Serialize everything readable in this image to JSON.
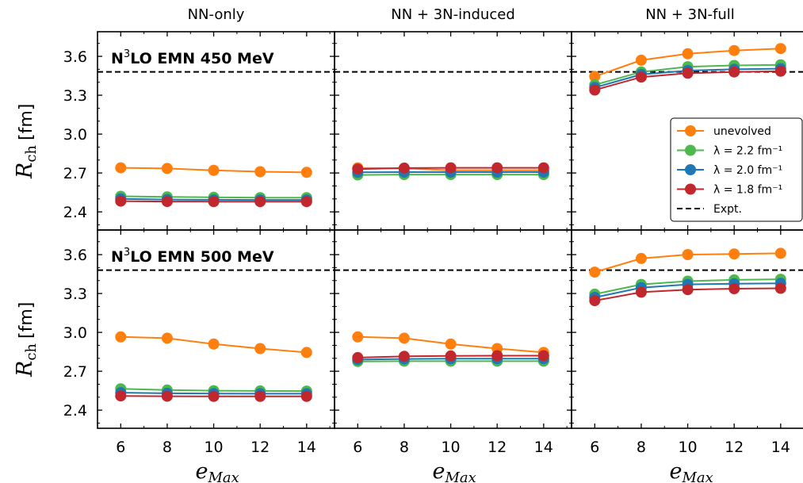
{
  "chart_data": {
    "type": "line",
    "column_titles": [
      "NN-only",
      "NN + 3N-induced",
      "NN + 3N-full"
    ],
    "row_labels": [
      "N³LO EMN 450 MeV",
      "N³LO EMN 500 MeV"
    ],
    "row_label_parts": [
      {
        "pre": "N",
        "sup": "3",
        "post": "LO EMN 450 MeV"
      },
      {
        "pre": "N",
        "sup": "3",
        "post": "LO EMN 500 MeV"
      }
    ],
    "xlabel": {
      "main": "e",
      "sub": "Max"
    },
    "ylabel": {
      "main": "R",
      "sub": "ch",
      "unit": "[fm]"
    },
    "x": [
      6,
      8,
      10,
      12,
      14
    ],
    "xticks": [
      "6",
      "8",
      "10",
      "12",
      "14"
    ],
    "yticks": [
      "2.4",
      "2.7",
      "3.0",
      "3.3",
      "3.6"
    ],
    "ytick_values": [
      2.4,
      2.7,
      3.0,
      3.3,
      3.6
    ],
    "xlim": [
      5,
      15.2
    ],
    "ylim": [
      2.26,
      3.79
    ],
    "expt_value": 3.48,
    "series_colors": {
      "unevolved": "#ff7f0e",
      "lambda_2.2": "#4db84d",
      "lambda_2.0": "#1f77b4",
      "lambda_1.8": "#c0282d"
    },
    "legend": {
      "position": "right, inside top-right panel",
      "entries": [
        {
          "key": "unevolved",
          "label": "unevolved"
        },
        {
          "key": "lambda_2.2",
          "label": "λ = 2.2 fm⁻¹"
        },
        {
          "key": "lambda_2.0",
          "label": "λ = 2.0 fm⁻¹"
        },
        {
          "key": "lambda_1.8",
          "label": "λ = 1.8 fm⁻¹"
        },
        {
          "key": "expt",
          "label": "Expt."
        }
      ]
    },
    "panels": [
      {
        "row": 0,
        "col": 0,
        "series": {
          "unevolved": [
            2.74,
            2.735,
            2.72,
            2.71,
            2.705
          ],
          "lambda_2.2": [
            2.52,
            2.515,
            2.512,
            2.51,
            2.51
          ],
          "lambda_2.0": [
            2.5,
            2.495,
            2.493,
            2.492,
            2.492
          ],
          "lambda_1.8": [
            2.483,
            2.48,
            2.479,
            2.479,
            2.479
          ]
        }
      },
      {
        "row": 0,
        "col": 1,
        "series": {
          "unevolved": [
            2.74,
            2.735,
            2.72,
            2.72,
            2.72
          ],
          "lambda_2.2": [
            2.685,
            2.688,
            2.688,
            2.688,
            2.688
          ],
          "lambda_2.0": [
            2.705,
            2.707,
            2.707,
            2.707,
            2.707
          ],
          "lambda_1.8": [
            2.73,
            2.738,
            2.74,
            2.74,
            2.74
          ]
        }
      },
      {
        "row": 0,
        "col": 2,
        "series": {
          "unevolved": [
            3.445,
            3.57,
            3.62,
            3.645,
            3.66
          ],
          "lambda_2.2": [
            3.38,
            3.48,
            3.52,
            3.53,
            3.535
          ],
          "lambda_2.0": [
            3.36,
            3.46,
            3.49,
            3.5,
            3.505
          ],
          "lambda_1.8": [
            3.34,
            3.44,
            3.47,
            3.48,
            3.485
          ]
        }
      },
      {
        "row": 1,
        "col": 0,
        "series": {
          "unevolved": [
            2.965,
            2.955,
            2.91,
            2.875,
            2.845
          ],
          "lambda_2.2": [
            2.565,
            2.555,
            2.55,
            2.548,
            2.547
          ],
          "lambda_2.0": [
            2.535,
            2.53,
            2.528,
            2.527,
            2.527
          ],
          "lambda_1.8": [
            2.51,
            2.507,
            2.506,
            2.506,
            2.506
          ]
        }
      },
      {
        "row": 1,
        "col": 1,
        "series": {
          "unevolved": [
            2.965,
            2.955,
            2.91,
            2.875,
            2.845
          ],
          "lambda_2.2": [
            2.775,
            2.778,
            2.778,
            2.778,
            2.778
          ],
          "lambda_2.0": [
            2.79,
            2.795,
            2.797,
            2.797,
            2.797
          ],
          "lambda_1.8": [
            2.805,
            2.815,
            2.818,
            2.82,
            2.82
          ]
        }
      },
      {
        "row": 1,
        "col": 2,
        "series": {
          "unevolved": [
            3.465,
            3.57,
            3.6,
            3.605,
            3.61
          ],
          "lambda_2.2": [
            3.295,
            3.37,
            3.395,
            3.405,
            3.41
          ],
          "lambda_2.0": [
            3.27,
            3.345,
            3.37,
            3.375,
            3.378
          ],
          "lambda_1.8": [
            3.245,
            3.31,
            3.33,
            3.337,
            3.34
          ]
        }
      }
    ]
  }
}
